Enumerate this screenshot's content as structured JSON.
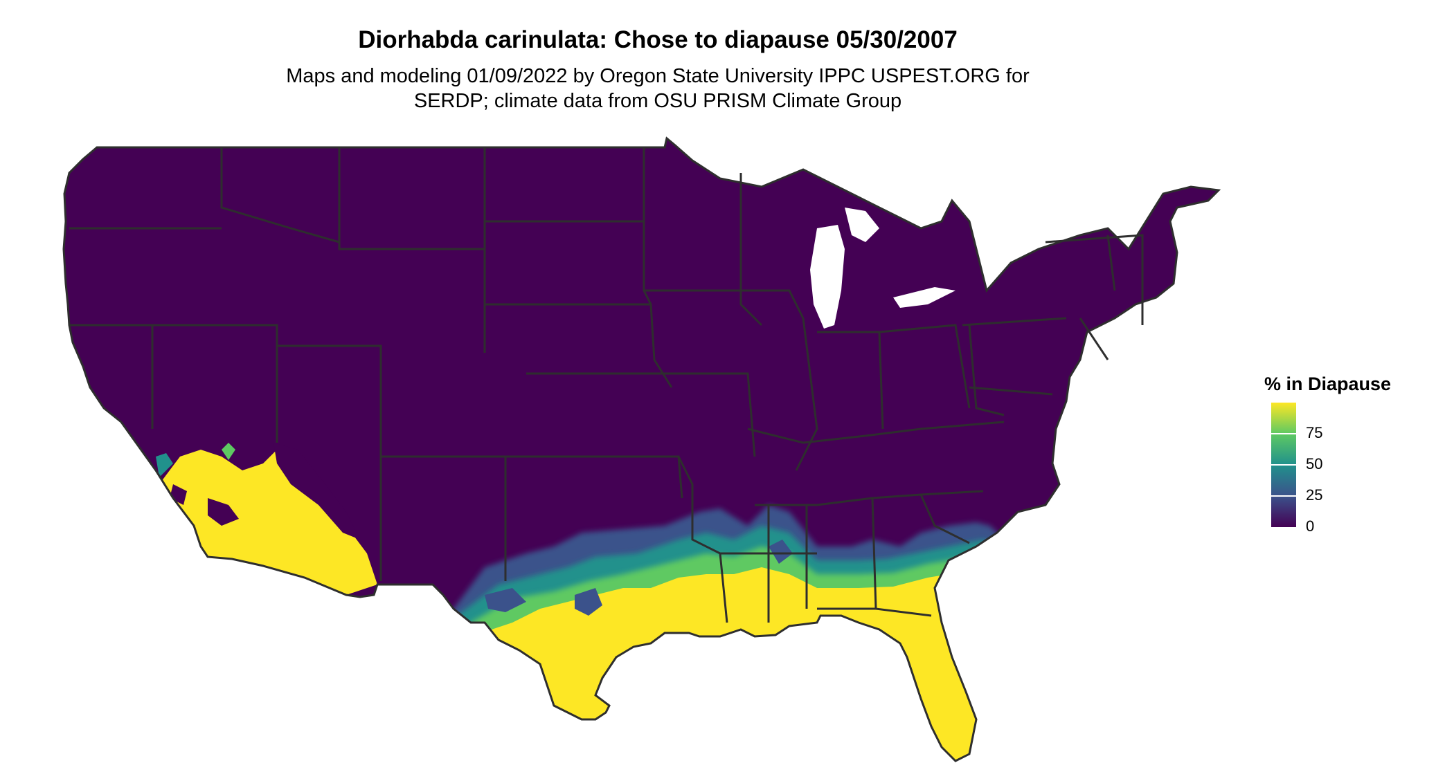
{
  "title": "Diorhabda carinulata: Chose to diapause 05/30/2007",
  "subtitle_line1": "Maps and modeling 01/09/2022 by Oregon State University IPPC USPEST.ORG for",
  "subtitle_line2": "SERDP; climate data from OSU PRISM Climate Group",
  "legend": {
    "title": "% in Diapause",
    "ticks": [
      "75",
      "50",
      "25",
      "0"
    ],
    "scale": "viridis",
    "colors": [
      "#440154",
      "#3b528b",
      "#21918c",
      "#5ec962",
      "#fde725"
    ]
  },
  "map": {
    "region": "Contiguous United States",
    "background_color": "#440154",
    "high_color": "#fde725",
    "border_color": "#2e2e2e"
  }
}
